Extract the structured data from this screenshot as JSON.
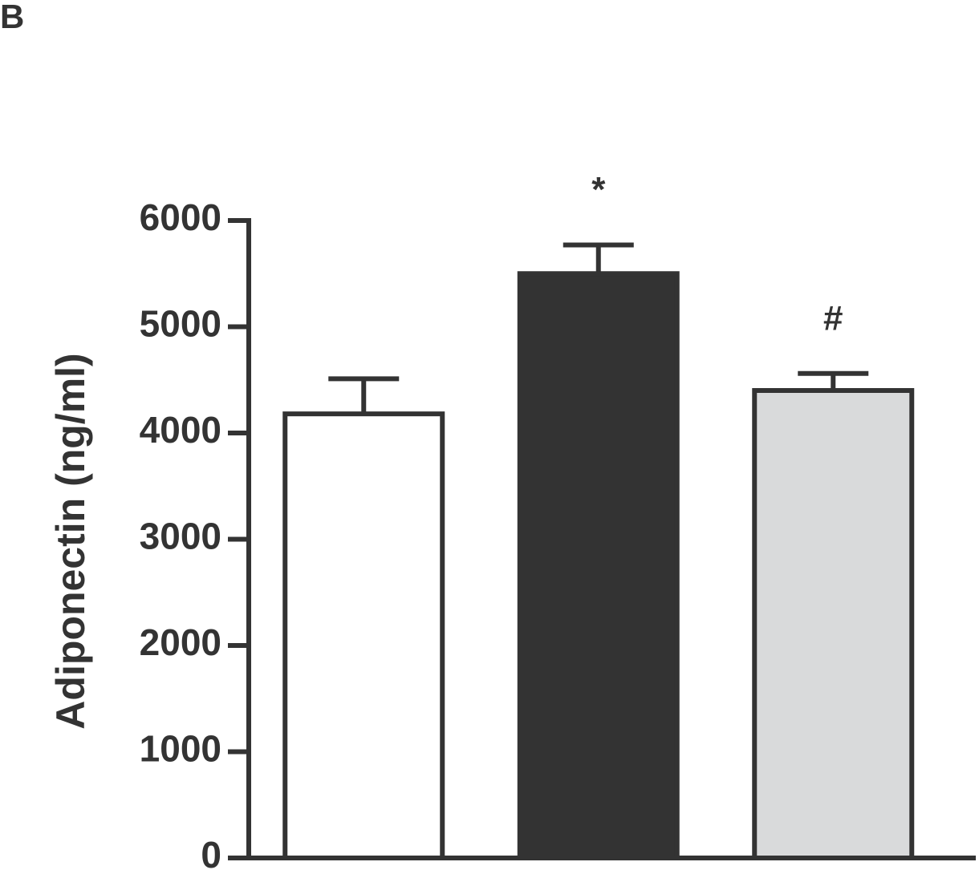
{
  "chart_data": {
    "type": "bar",
    "panel_label": "B",
    "ylabel": "Adiponectin (ng/ml)",
    "categories": [
      null,
      null,
      null
    ],
    "values": [
      4180,
      5500,
      4400
    ],
    "errors": [
      330,
      270,
      160
    ],
    "colors": [
      "#ffffff",
      "#333333",
      "#d9dadb"
    ],
    "annotations": [
      null,
      "*",
      "#"
    ],
    "ylim": [
      0,
      6000
    ],
    "yticks": [
      0,
      1000,
      2000,
      3000,
      4000,
      5000,
      6000
    ]
  }
}
